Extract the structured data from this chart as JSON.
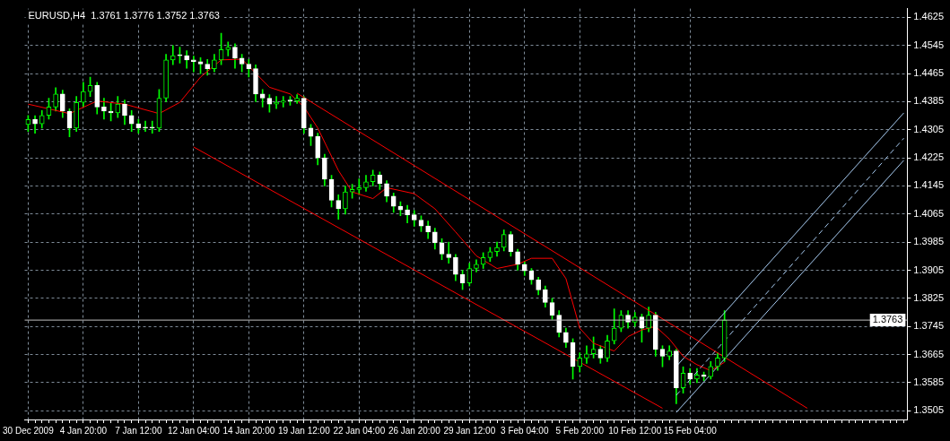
{
  "chart_data": {
    "type": "candlestick",
    "title": "EURUSD,H4  1.3761 1.3776 1.3752 1.3763",
    "categories": [
      "30 Dec 2009",
      null,
      null,
      null,
      null,
      null,
      null,
      null,
      "4 Jan 20:00",
      null,
      null,
      null,
      null,
      null,
      null,
      null,
      "7 Jan 12:00",
      null,
      null,
      null,
      null,
      null,
      null,
      null,
      "12 Jan 04:00",
      null,
      null,
      null,
      null,
      null,
      null,
      null,
      "14 Jan 20:00",
      null,
      null,
      null,
      null,
      null,
      null,
      null,
      "19 Jan 12:00",
      null,
      null,
      null,
      null,
      null,
      null,
      null,
      "22 Jan 04:00",
      null,
      null,
      null,
      null,
      null,
      null,
      null,
      "26 Jan 20:00",
      null,
      null,
      null,
      null,
      null,
      null,
      null,
      "29 Jan 12:00",
      null,
      null,
      null,
      null,
      null,
      null,
      null,
      "3 Feb 04:00",
      null,
      null,
      null,
      null,
      null,
      null,
      null,
      "5 Feb 20:00",
      null,
      null,
      null,
      null,
      null,
      null,
      null,
      "10 Feb 12:00",
      null,
      null,
      null,
      null,
      null,
      null,
      null,
      "15 Feb 04:00",
      null,
      null,
      null,
      null,
      null,
      null,
      null,
      null,
      null,
      null,
      null,
      null,
      null,
      null,
      null,
      null,
      null,
      null,
      null,
      null,
      null,
      null,
      null,
      null,
      null,
      null,
      null,
      null,
      null,
      null,
      null
    ],
    "ohlc": [
      [
        1.432,
        1.4346,
        1.43,
        1.4334
      ],
      [
        1.4334,
        1.4345,
        1.4295,
        1.4322
      ],
      [
        1.4322,
        1.436,
        1.431,
        1.4346
      ],
      [
        1.4346,
        1.4395,
        1.4335,
        1.437
      ],
      [
        1.437,
        1.4425,
        1.4358,
        1.4407
      ],
      [
        1.4407,
        1.4418,
        1.434,
        1.4358
      ],
      [
        1.4358,
        1.4365,
        1.4285,
        1.431
      ],
      [
        1.431,
        1.44,
        1.43,
        1.4383
      ],
      [
        1.4383,
        1.444,
        1.437,
        1.4414
      ],
      [
        1.4414,
        1.4455,
        1.44,
        1.4431
      ],
      [
        1.4431,
        1.444,
        1.435,
        1.437
      ],
      [
        1.437,
        1.4395,
        1.4335,
        1.4358
      ],
      [
        1.4358,
        1.438,
        1.433,
        1.4353
      ],
      [
        1.4353,
        1.44,
        1.434,
        1.4378
      ],
      [
        1.4378,
        1.439,
        1.432,
        1.4346
      ],
      [
        1.4346,
        1.436,
        1.43,
        1.4322
      ],
      [
        1.4322,
        1.4335,
        1.4295,
        1.431
      ],
      [
        1.431,
        1.433,
        1.43,
        1.431
      ],
      [
        1.431,
        1.433,
        1.4295,
        1.431
      ],
      [
        1.431,
        1.442,
        1.43,
        1.4395
      ],
      [
        1.4395,
        1.452,
        1.4385,
        1.4504
      ],
      [
        1.4504,
        1.4545,
        1.449,
        1.4516
      ],
      [
        1.4516,
        1.454,
        1.4495,
        1.4516
      ],
      [
        1.4516,
        1.453,
        1.448,
        1.4504
      ],
      [
        1.4504,
        1.4515,
        1.447,
        1.4499
      ],
      [
        1.4499,
        1.451,
        1.4465,
        1.4492
      ],
      [
        1.4492,
        1.4505,
        1.446,
        1.4479
      ],
      [
        1.4479,
        1.452,
        1.447,
        1.4504
      ],
      [
        1.4504,
        1.458,
        1.449,
        1.4533
      ],
      [
        1.4533,
        1.4555,
        1.4515,
        1.454
      ],
      [
        1.454,
        1.455,
        1.448,
        1.4509
      ],
      [
        1.4509,
        1.452,
        1.447,
        1.4492
      ],
      [
        1.4492,
        1.4505,
        1.4455,
        1.4479
      ],
      [
        1.4479,
        1.449,
        1.4385,
        1.4407
      ],
      [
        1.4407,
        1.442,
        1.437,
        1.4395
      ],
      [
        1.4395,
        1.4405,
        1.4355,
        1.4378
      ],
      [
        1.4378,
        1.44,
        1.4365,
        1.4383
      ],
      [
        1.4383,
        1.44,
        1.437,
        1.4387
      ],
      [
        1.4387,
        1.44,
        1.4375,
        1.4387
      ],
      [
        1.4387,
        1.4405,
        1.438,
        1.4395
      ],
      [
        1.4395,
        1.44,
        1.4295,
        1.431
      ],
      [
        1.431,
        1.432,
        1.426,
        1.4286
      ],
      [
        1.4286,
        1.4295,
        1.4205,
        1.4225
      ],
      [
        1.4225,
        1.4235,
        1.4145,
        1.4164
      ],
      [
        1.4164,
        1.4175,
        1.4085,
        1.4104
      ],
      [
        1.4104,
        1.412,
        1.405,
        1.408
      ],
      [
        1.408,
        1.4145,
        1.4065,
        1.4128
      ],
      [
        1.4128,
        1.415,
        1.411,
        1.4135
      ],
      [
        1.4135,
        1.4165,
        1.412,
        1.414
      ],
      [
        1.414,
        1.4175,
        1.413,
        1.4157
      ],
      [
        1.4157,
        1.419,
        1.4145,
        1.4176
      ],
      [
        1.4176,
        1.4185,
        1.4135,
        1.4152
      ],
      [
        1.4152,
        1.416,
        1.41,
        1.4116
      ],
      [
        1.4116,
        1.4125,
        1.407,
        1.4087
      ],
      [
        1.4087,
        1.41,
        1.406,
        1.4077
      ],
      [
        1.4077,
        1.409,
        1.404,
        1.4063
      ],
      [
        1.4063,
        1.4075,
        1.403,
        1.4048
      ],
      [
        1.4048,
        1.406,
        1.4015,
        1.4031
      ],
      [
        1.4031,
        1.4045,
        1.3995,
        1.4014
      ],
      [
        1.4014,
        1.4025,
        1.3965,
        1.3983
      ],
      [
        1.3983,
        1.3995,
        1.3935,
        1.3951
      ],
      [
        1.3951,
        1.3985,
        1.3925,
        1.3941
      ],
      [
        1.3941,
        1.395,
        1.3875,
        1.3893
      ],
      [
        1.3893,
        1.3905,
        1.385,
        1.3869
      ],
      [
        1.3869,
        1.3925,
        1.386,
        1.391
      ],
      [
        1.391,
        1.3935,
        1.39,
        1.3922
      ],
      [
        1.3922,
        1.3955,
        1.391,
        1.3941
      ],
      [
        1.3941,
        1.397,
        1.393,
        1.3958
      ],
      [
        1.3958,
        1.3985,
        1.3945,
        1.397
      ],
      [
        1.397,
        1.402,
        1.396,
        1.4007
      ],
      [
        1.4007,
        1.4015,
        1.3945,
        1.3958
      ],
      [
        1.3958,
        1.3965,
        1.3905,
        1.3922
      ],
      [
        1.3922,
        1.393,
        1.389,
        1.3903
      ],
      [
        1.3903,
        1.391,
        1.3865,
        1.3878
      ],
      [
        1.3878,
        1.3885,
        1.3835,
        1.3849
      ],
      [
        1.3849,
        1.386,
        1.38,
        1.3813
      ],
      [
        1.3813,
        1.3825,
        1.3765,
        1.3777
      ],
      [
        1.3777,
        1.379,
        1.3715,
        1.3728
      ],
      [
        1.3728,
        1.374,
        1.3685,
        1.3699
      ],
      [
        1.3699,
        1.371,
        1.3595,
        1.3631
      ],
      [
        1.3631,
        1.367,
        1.3615,
        1.3655
      ],
      [
        1.3655,
        1.369,
        1.364,
        1.3667
      ],
      [
        1.3667,
        1.3715,
        1.3655,
        1.368
      ],
      [
        1.368,
        1.369,
        1.364,
        1.3655
      ],
      [
        1.3655,
        1.372,
        1.3645,
        1.3704
      ],
      [
        1.3704,
        1.3795,
        1.3695,
        1.374
      ],
      [
        1.374,
        1.379,
        1.373,
        1.3777
      ],
      [
        1.3777,
        1.379,
        1.374,
        1.3757
      ],
      [
        1.3757,
        1.3785,
        1.3745,
        1.3772
      ],
      [
        1.3772,
        1.378,
        1.37,
        1.374
      ],
      [
        1.374,
        1.38,
        1.373,
        1.3777
      ],
      [
        1.3777,
        1.3785,
        1.366,
        1.368
      ],
      [
        1.368,
        1.369,
        1.363,
        1.366
      ],
      [
        1.366,
        1.369,
        1.365,
        1.3675
      ],
      [
        1.3675,
        1.368,
        1.3525,
        1.357
      ],
      [
        1.357,
        1.363,
        1.3555,
        1.3612
      ],
      [
        1.3612,
        1.3625,
        1.358,
        1.3595
      ],
      [
        1.3595,
        1.3625,
        1.3585,
        1.3607
      ],
      [
        1.3607,
        1.3615,
        1.359,
        1.3602
      ],
      [
        1.3602,
        1.3645,
        1.3595,
        1.3631
      ],
      [
        1.3631,
        1.367,
        1.362,
        1.3655
      ],
      [
        1.3655,
        1.379,
        1.3645,
        1.3763
      ],
      null,
      null,
      null,
      null,
      null,
      null,
      null,
      null,
      null,
      null,
      null,
      null,
      null,
      null,
      null,
      null,
      null,
      null,
      null,
      null,
      null,
      null,
      null,
      null,
      null,
      null
    ],
    "color": "#00ff00",
    "colors": [
      "#00ff00",
      "#ffffff",
      "#00ff00",
      "#00ff00",
      "#00ff00",
      "#ffffff",
      "#ffffff",
      "#00ff00",
      "#00ff00",
      "#00ff00",
      "#ffffff",
      "#ffffff",
      "#ffffff",
      "#00ff00",
      "#ffffff",
      "#ffffff",
      "#ffffff",
      "#ffffff",
      "#ffffff",
      "#00ff00",
      "#00ff00",
      "#00ff00",
      "#ffffff",
      "#ffffff",
      "#ffffff",
      "#ffffff",
      "#ffffff",
      "#00ff00",
      "#00ff00",
      "#00ff00",
      "#ffffff",
      "#ffffff",
      "#ffffff",
      "#ffffff",
      "#ffffff",
      "#ffffff",
      "#00ff00",
      "#00ff00",
      "#ffffff",
      "#00ff00",
      "#ffffff",
      "#ffffff",
      "#ffffff",
      "#ffffff",
      "#ffffff",
      "#ffffff",
      "#00ff00",
      "#00ff00",
      "#00ff00",
      "#00ff00",
      "#00ff00",
      "#ffffff",
      "#ffffff",
      "#ffffff",
      "#ffffff",
      "#ffffff",
      "#ffffff",
      "#ffffff",
      "#ffffff",
      "#ffffff",
      "#ffffff",
      "#ffffff",
      "#ffffff",
      "#ffffff",
      "#00ff00",
      "#00ff00",
      "#00ff00",
      "#00ff00",
      "#00ff00",
      "#00ff00",
      "#ffffff",
      "#ffffff",
      "#ffffff",
      "#ffffff",
      "#ffffff",
      "#ffffff",
      "#ffffff",
      "#ffffff",
      "#ffffff",
      "#ffffff",
      "#00ff00",
      "#00ff00",
      "#00ff00",
      "#ffffff",
      "#00ff00",
      "#00ff00",
      "#00ff00",
      "#ffffff",
      "#00ff00",
      "#ffffff",
      "#00ff00",
      "#ffffff",
      "#ffffff",
      "#00ff00",
      "#ffffff",
      "#00ff00",
      "#ffffff",
      "#00ff00",
      "#ffffff",
      "#00ff00",
      "#00ff00",
      "#00ff00",
      null,
      null,
      null,
      null,
      null,
      null,
      null,
      null,
      null,
      null,
      null,
      null,
      null,
      null,
      null,
      null,
      null,
      null,
      null,
      null,
      null,
      null,
      null,
      null,
      null,
      null
    ],
    "series": [
      {
        "type": "line",
        "color": "#ff0000",
        "values": [
          1.4378,
          null,
          null,
          null,
          null,
          null,
          1.4351,
          null,
          null,
          null,
          1.4387,
          null,
          null,
          null,
          1.4378,
          null,
          null,
          null,
          null,
          1.4351,
          null,
          null,
          1.4383,
          null,
          null,
          1.4455,
          null,
          null,
          1.4504,
          null,
          null,
          1.4506,
          null,
          null,
          null,
          1.4426,
          null,
          null,
          1.4407,
          null,
          1.437,
          null,
          1.431,
          null,
          null,
          1.4189,
          null,
          1.4128,
          null,
          null,
          1.4109,
          null,
          1.414,
          null,
          null,
          null,
          1.4123,
          null,
          null,
          1.408,
          null,
          null,
          1.4014,
          null,
          null,
          1.3946,
          null,
          null,
          1.391,
          null,
          null,
          1.3922,
          null,
          1.3939,
          null,
          null,
          1.3939,
          null,
          1.3881,
          null,
          1.374,
          null,
          1.3697,
          null,
          null,
          1.3675,
          null,
          1.3716,
          null,
          1.3735,
          null,
          1.3745,
          null,
          1.3709,
          null,
          1.366,
          null,
          1.3636,
          null,
          1.3619,
          null,
          1.3643,
          null,
          null,
          null,
          null,
          null,
          null,
          null,
          null,
          null,
          null,
          null,
          null,
          null,
          null,
          null,
          null,
          null,
          null,
          null,
          null,
          null,
          null,
          null,
          null,
          null,
          null
        ]
      },
      {
        "type": "line",
        "color": "#ff0000",
        "values": [
          null,
          null,
          null,
          null,
          null,
          null,
          null,
          null,
          null,
          null,
          null,
          null,
          null,
          null,
          null,
          null,
          null,
          null,
          null,
          null,
          null,
          null,
          null,
          null,
          null,
          null,
          null,
          null,
          null,
          null,
          null,
          null,
          null,
          null,
          null,
          null,
          null,
          null,
          null,
          1.4409,
          null,
          null,
          null,
          null,
          null,
          null,
          null,
          null,
          null,
          null,
          null,
          null,
          null,
          null,
          null,
          null,
          null,
          null,
          null,
          null,
          null,
          null,
          null,
          null,
          null,
          null,
          null,
          null,
          null,
          null,
          null,
          null,
          null,
          null,
          null,
          null,
          null,
          null,
          null,
          null,
          null,
          null,
          null,
          null,
          null,
          null,
          null,
          null,
          null,
          null,
          null,
          null,
          null,
          null,
          null,
          null,
          null,
          null,
          null,
          null,
          null,
          null,
          null,
          null,
          null,
          null,
          null,
          null,
          null,
          null,
          null,
          null,
          null,
          1.3512,
          null,
          null,
          null,
          null,
          null,
          null,
          null,
          null,
          null,
          null,
          null,
          null,
          null,
          null
        ]
      },
      {
        "type": "line",
        "color": "#ff0000",
        "values": [
          null,
          null,
          null,
          null,
          null,
          null,
          null,
          null,
          null,
          null,
          null,
          null,
          null,
          null,
          null,
          null,
          null,
          null,
          null,
          null,
          null,
          null,
          null,
          null,
          1.4256,
          null,
          null,
          null,
          null,
          null,
          null,
          null,
          null,
          null,
          null,
          null,
          null,
          null,
          null,
          null,
          null,
          null,
          null,
          null,
          null,
          null,
          null,
          null,
          null,
          null,
          null,
          null,
          null,
          null,
          null,
          null,
          null,
          null,
          null,
          null,
          null,
          null,
          null,
          null,
          null,
          null,
          null,
          null,
          null,
          null,
          null,
          null,
          null,
          null,
          null,
          null,
          null,
          null,
          null,
          null,
          null,
          null,
          null,
          null,
          null,
          null,
          null,
          null,
          null,
          null,
          null,
          null,
          1.3512,
          null,
          null,
          null,
          null,
          null,
          null,
          null,
          null,
          null,
          null,
          null,
          null,
          null,
          null,
          null,
          null,
          null,
          null,
          null,
          null,
          null,
          null,
          null,
          null,
          null,
          null,
          null,
          null,
          null,
          null,
          null,
          null,
          null,
          null,
          null
        ]
      },
      {
        "type": "line",
        "color": "#a6caf0",
        "values": [
          null,
          null,
          null,
          null,
          null,
          null,
          null,
          null,
          null,
          null,
          null,
          null,
          null,
          null,
          null,
          null,
          null,
          null,
          null,
          null,
          null,
          null,
          null,
          null,
          null,
          null,
          null,
          null,
          null,
          null,
          null,
          null,
          null,
          null,
          null,
          null,
          null,
          null,
          null,
          null,
          null,
          null,
          null,
          null,
          null,
          null,
          null,
          null,
          null,
          null,
          null,
          null,
          null,
          null,
          null,
          null,
          null,
          null,
          null,
          null,
          null,
          null,
          null,
          null,
          null,
          null,
          null,
          null,
          null,
          null,
          null,
          null,
          null,
          null,
          null,
          null,
          null,
          null,
          null,
          null,
          null,
          null,
          null,
          null,
          null,
          null,
          null,
          null,
          null,
          null,
          null,
          null,
          null,
          null,
          1.3631,
          null,
          null,
          null,
          null,
          null,
          null,
          null,
          null,
          null,
          null,
          null,
          null,
          null,
          null,
          null,
          null,
          null,
          null,
          null,
          null,
          null,
          null,
          null,
          null,
          null,
          null,
          null,
          null,
          null,
          null,
          null,
          null,
          1.4353
        ]
      },
      {
        "type": "line",
        "color": "#a6caf0",
        "line_style": "dashed",
        "values": [
          null,
          null,
          null,
          null,
          null,
          null,
          null,
          null,
          null,
          null,
          null,
          null,
          null,
          null,
          null,
          null,
          null,
          null,
          null,
          null,
          null,
          null,
          null,
          null,
          null,
          null,
          null,
          null,
          null,
          null,
          null,
          null,
          null,
          null,
          null,
          null,
          null,
          null,
          null,
          null,
          null,
          null,
          null,
          null,
          null,
          null,
          null,
          null,
          null,
          null,
          null,
          null,
          null,
          null,
          null,
          null,
          null,
          null,
          null,
          null,
          null,
          null,
          null,
          null,
          null,
          null,
          null,
          null,
          null,
          null,
          null,
          null,
          null,
          null,
          null,
          null,
          null,
          null,
          null,
          null,
          null,
          null,
          null,
          null,
          null,
          null,
          null,
          null,
          null,
          null,
          null,
          null,
          null,
          null,
          1.3549,
          null,
          null,
          null,
          null,
          null,
          null,
          null,
          null,
          null,
          null,
          null,
          null,
          null,
          null,
          null,
          null,
          null,
          null,
          null,
          null,
          null,
          null,
          null,
          null,
          null,
          null,
          null,
          null,
          null,
          null,
          null,
          null,
          1.4281
        ]
      },
      {
        "type": "line",
        "color": "#a6caf0",
        "values": [
          null,
          null,
          null,
          null,
          null,
          null,
          null,
          null,
          null,
          null,
          null,
          null,
          null,
          null,
          null,
          null,
          null,
          null,
          null,
          null,
          null,
          null,
          null,
          null,
          null,
          null,
          null,
          null,
          null,
          null,
          null,
          null,
          null,
          null,
          null,
          null,
          null,
          null,
          null,
          null,
          null,
          null,
          null,
          null,
          null,
          null,
          null,
          null,
          null,
          null,
          null,
          null,
          null,
          null,
          null,
          null,
          null,
          null,
          null,
          null,
          null,
          null,
          null,
          null,
          null,
          null,
          null,
          null,
          null,
          null,
          null,
          null,
          null,
          null,
          null,
          null,
          null,
          null,
          null,
          null,
          null,
          null,
          null,
          null,
          null,
          null,
          null,
          null,
          null,
          null,
          null,
          null,
          null,
          null,
          1.35,
          null,
          null,
          null,
          null,
          null,
          null,
          null,
          null,
          null,
          null,
          null,
          null,
          null,
          null,
          null,
          null,
          null,
          null,
          null,
          null,
          null,
          null,
          null,
          null,
          null,
          null,
          null,
          null,
          null,
          null,
          null,
          null,
          1.4218
        ]
      }
    ],
    "ylim": [
      1.348,
      1.465
    ],
    "yticks": [
      1.3505,
      1.3585,
      1.3665,
      1.3745,
      1.3825,
      1.3905,
      1.3985,
      1.4065,
      1.4145,
      1.4225,
      1.4305,
      1.4385,
      1.4465,
      1.4545,
      1.4625
    ],
    "grid": true,
    "ref_lines": [
      {
        "axis": "y",
        "value": 1.3763,
        "label": "1.3763",
        "color": "#c0c0c0"
      }
    ]
  }
}
